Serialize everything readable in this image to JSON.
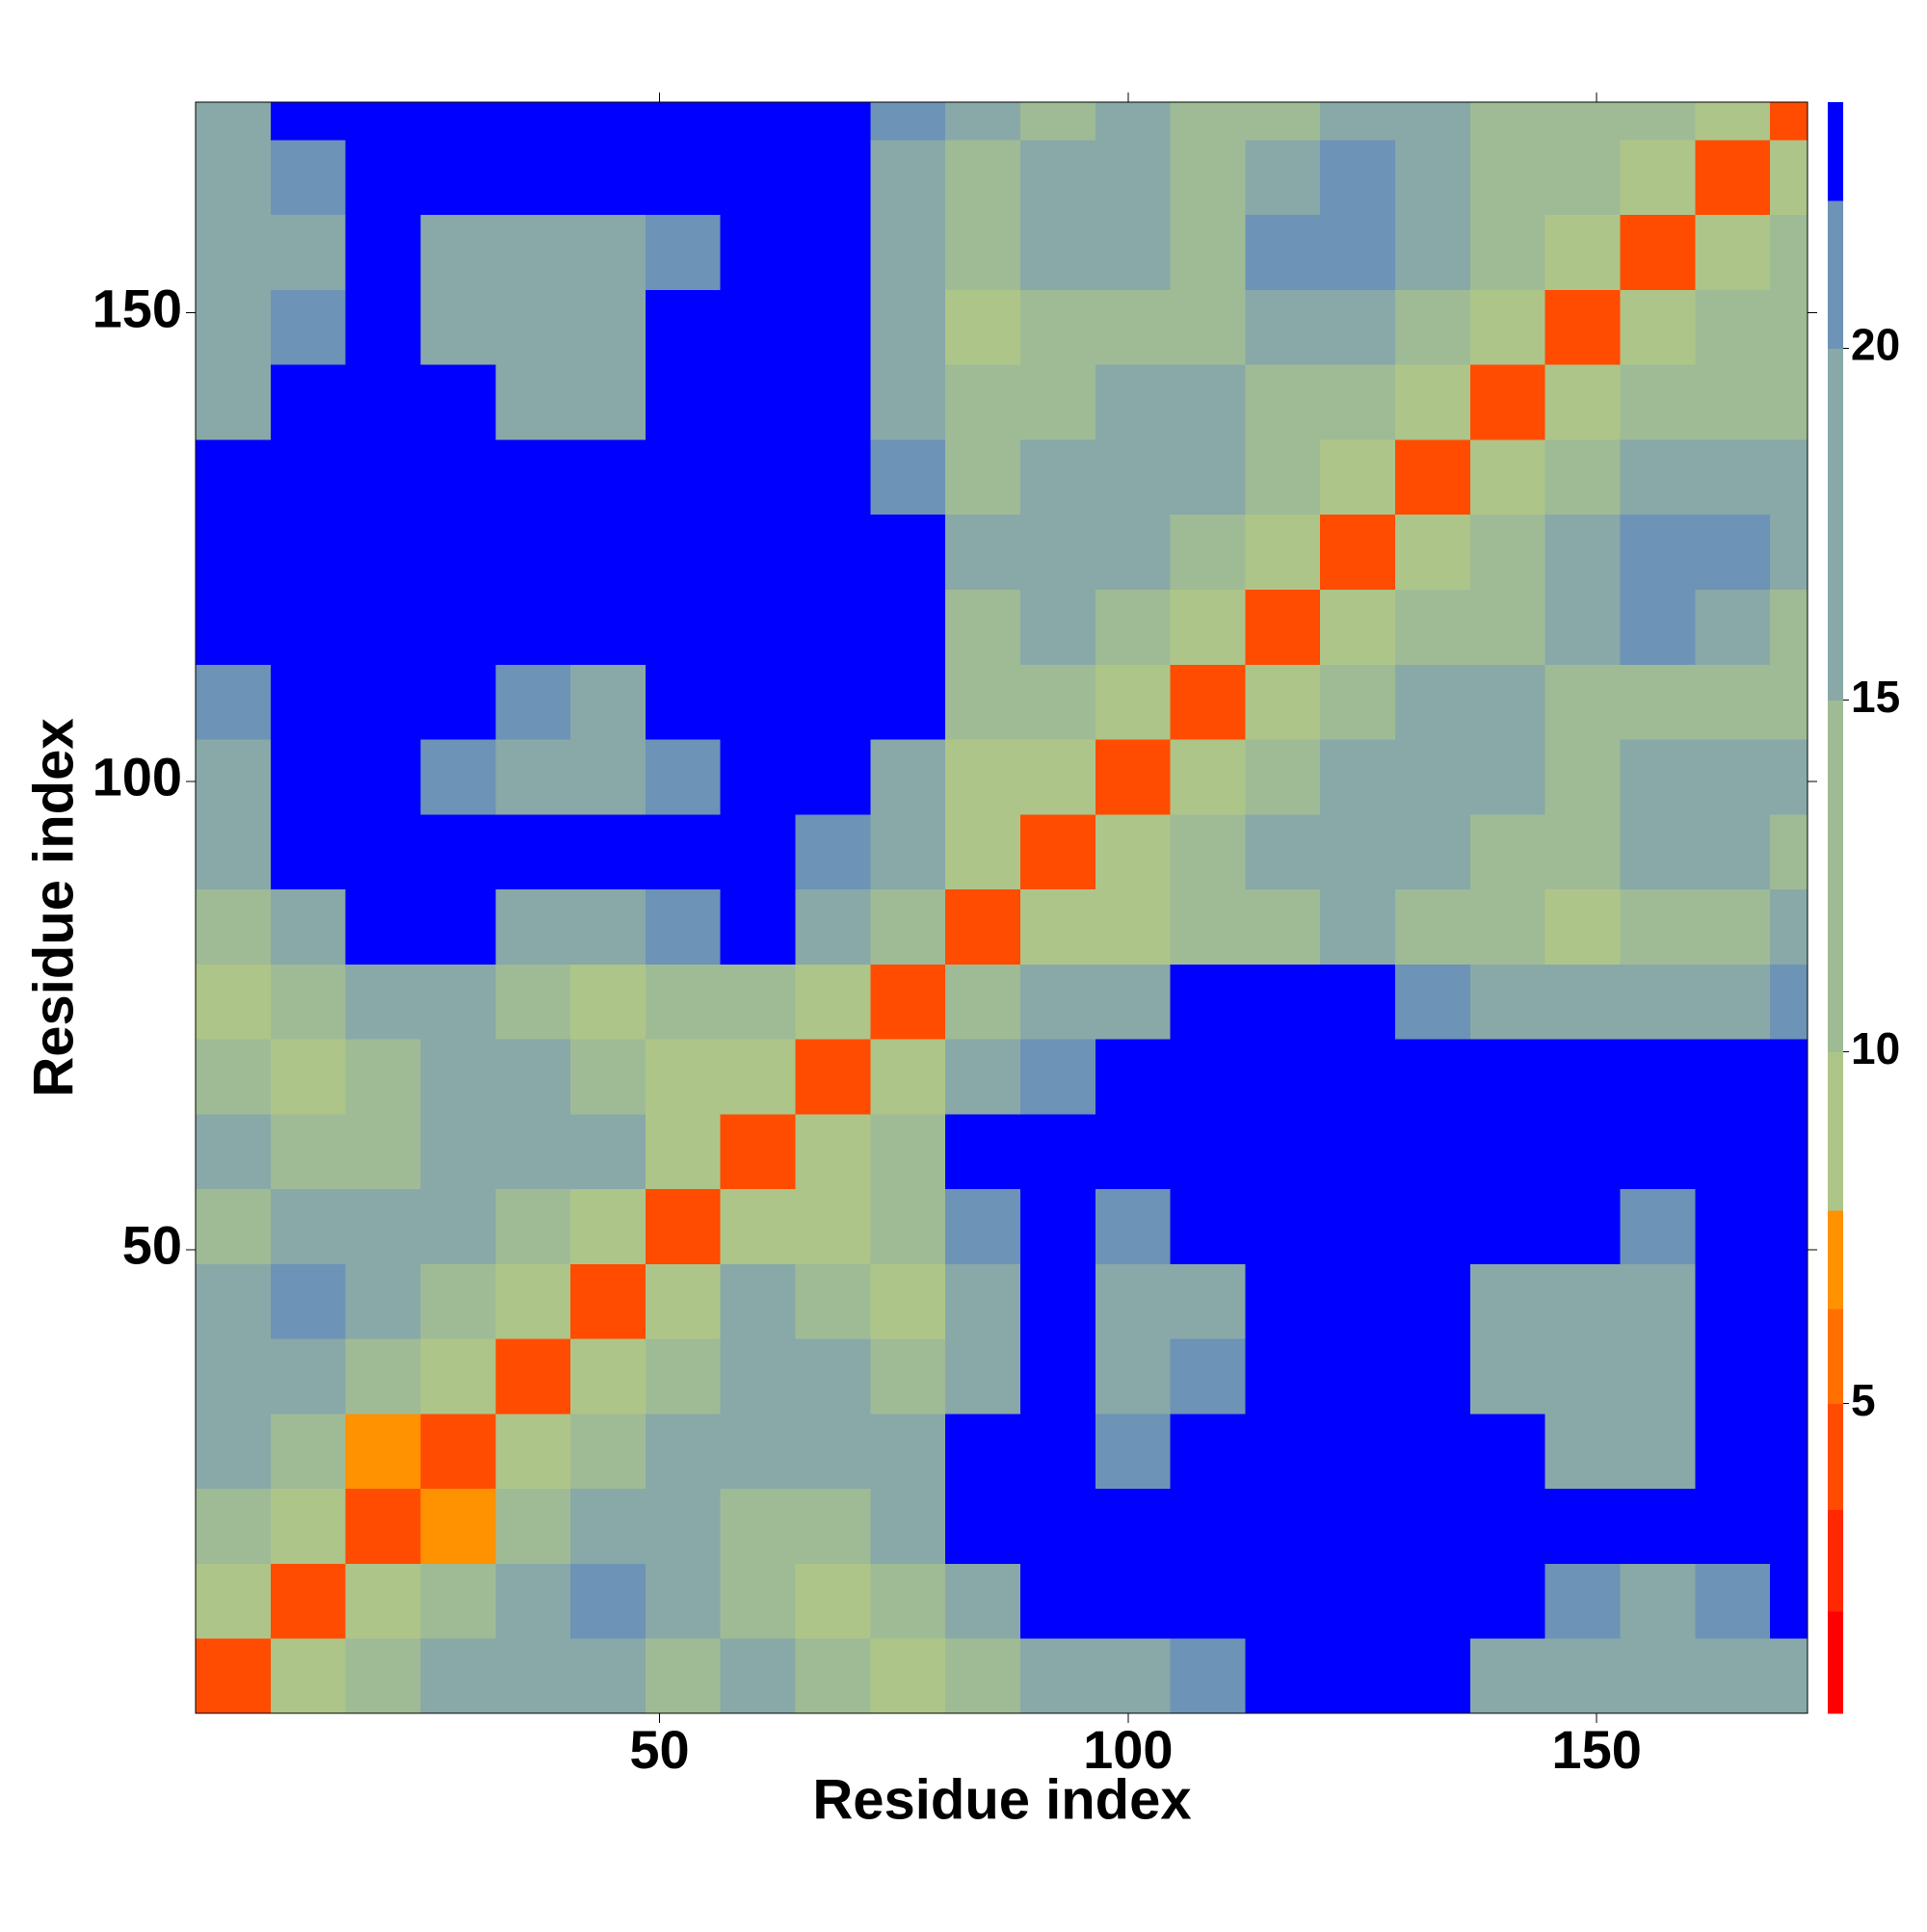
{
  "chart_data": {
    "type": "heatmap",
    "x_label": "Residue index",
    "y_label": "Residue index",
    "xlim": [
      0.5,
      172.5
    ],
    "ylim": [
      0.5,
      172.5
    ],
    "xticks": [
      50,
      100,
      150
    ],
    "yticks": [
      50,
      100,
      150
    ],
    "x_bins": [
      0.5,
      8.5,
      16.5,
      24.5,
      32.5,
      40.5,
      48.5,
      56.5,
      64.5,
      72.5,
      80.5,
      88.5,
      96.5,
      104.5,
      112.5,
      120.5,
      128.5,
      136.5,
      144.5,
      152.5,
      160.5,
      168.5,
      172.5
    ],
    "y_bins": [
      0.5,
      8.5,
      16.5,
      24.5,
      32.5,
      40.5,
      48.5,
      56.5,
      64.5,
      72.5,
      80.5,
      88.5,
      96.5,
      104.5,
      112.5,
      120.5,
      128.5,
      136.5,
      144.5,
      152.5,
      160.5,
      168.5,
      172.5
    ],
    "values": [
      [
        4,
        9,
        13,
        16,
        18,
        16,
        14,
        17,
        13,
        9,
        14,
        20,
        17,
        21,
        23,
        23,
        23,
        20,
        18,
        17,
        18,
        19
      ],
      [
        9,
        4,
        8,
        12,
        17,
        21,
        20,
        11,
        10,
        14,
        18,
        23,
        23,
        23,
        23,
        23,
        23,
        23,
        21,
        20,
        21,
        23
      ],
      [
        13,
        8,
        4,
        7,
        12,
        20,
        19,
        14,
        15,
        17,
        23,
        23,
        23,
        23,
        23,
        23,
        23,
        23,
        23,
        23,
        23,
        23
      ],
      [
        16,
        12,
        7,
        4,
        8,
        12,
        16,
        17,
        20,
        19,
        23,
        23,
        21,
        23,
        23,
        23,
        23,
        23,
        20,
        19,
        23,
        23
      ],
      [
        18,
        17,
        12,
        8,
        4,
        9,
        12,
        18,
        19,
        12,
        20,
        23,
        17,
        21,
        23,
        23,
        23,
        20,
        16,
        16,
        23,
        23
      ],
      [
        16,
        21,
        20,
        12,
        9,
        4,
        10,
        18,
        15,
        9,
        19,
        23,
        16,
        20,
        23,
        23,
        23,
        20,
        17,
        17,
        23,
        23
      ],
      [
        14,
        20,
        19,
        16,
        12,
        10,
        4,
        10,
        9,
        14,
        21,
        23,
        21,
        23,
        23,
        23,
        23,
        23,
        23,
        21,
        23,
        23
      ],
      [
        17,
        11,
        14,
        17,
        18,
        18,
        10,
        4,
        9,
        12,
        23,
        23,
        23,
        23,
        23,
        23,
        23,
        23,
        23,
        23,
        23,
        23
      ],
      [
        13,
        10,
        15,
        20,
        19,
        15,
        9,
        9,
        4,
        10,
        16,
        21,
        23,
        23,
        23,
        23,
        23,
        23,
        23,
        23,
        23,
        23
      ],
      [
        9,
        14,
        17,
        19,
        12,
        9,
        14,
        12,
        10,
        4,
        12,
        17,
        20,
        23,
        23,
        23,
        22,
        18,
        18,
        19,
        20,
        21
      ],
      [
        14,
        18,
        23,
        23,
        20,
        19,
        21,
        23,
        16,
        12,
        4,
        9,
        10,
        13,
        15,
        17,
        15,
        12,
        10,
        12,
        15,
        17
      ],
      [
        20,
        23,
        23,
        23,
        23,
        23,
        23,
        23,
        21,
        17,
        9,
        4,
        9,
        11,
        18,
        20,
        16,
        14,
        14,
        18,
        17,
        15
      ],
      [
        17,
        23,
        23,
        21,
        17,
        16,
        21,
        23,
        23,
        20,
        10,
        9,
        4,
        9,
        12,
        16,
        17,
        16,
        15,
        20,
        19,
        18
      ],
      [
        21,
        23,
        23,
        23,
        21,
        20,
        23,
        23,
        23,
        23,
        13,
        11,
        9,
        4,
        9,
        13,
        17,
        16,
        14,
        14,
        11,
        15
      ],
      [
        23,
        23,
        23,
        23,
        23,
        23,
        23,
        23,
        23,
        23,
        15,
        18,
        12,
        9,
        4,
        9,
        12,
        14,
        18,
        21,
        19,
        13
      ],
      [
        23,
        23,
        23,
        23,
        23,
        23,
        23,
        23,
        23,
        23,
        17,
        20,
        16,
        13,
        9,
        4,
        9,
        13,
        17,
        21,
        22,
        18
      ],
      [
        23,
        23,
        23,
        23,
        23,
        23,
        23,
        23,
        23,
        22,
        15,
        16,
        17,
        17,
        12,
        9,
        4,
        9,
        13,
        18,
        20,
        19
      ],
      [
        20,
        23,
        23,
        23,
        20,
        20,
        23,
        23,
        23,
        18,
        12,
        14,
        16,
        16,
        14,
        13,
        9,
        4,
        9,
        12,
        11,
        15
      ],
      [
        18,
        21,
        23,
        20,
        16,
        17,
        23,
        23,
        23,
        18,
        10,
        14,
        15,
        14,
        18,
        17,
        13,
        9,
        4,
        9,
        12,
        14
      ],
      [
        17,
        20,
        23,
        19,
        16,
        17,
        21,
        23,
        23,
        19,
        12,
        18,
        20,
        14,
        21,
        21,
        18,
        12,
        9,
        4,
        9,
        12
      ],
      [
        18,
        21,
        23,
        23,
        23,
        23,
        23,
        23,
        23,
        20,
        15,
        17,
        19,
        11,
        19,
        22,
        20,
        11,
        12,
        9,
        4,
        9
      ],
      [
        19,
        23,
        23,
        23,
        23,
        23,
        23,
        23,
        23,
        21,
        17,
        15,
        18,
        15,
        13,
        18,
        19,
        15,
        14,
        12,
        9,
        4
      ]
    ],
    "colorbar": {
      "lim": [
        0.6,
        23.5
      ],
      "ticks": [
        5,
        10,
        15,
        20
      ],
      "levels": [
        0.6,
        2.05,
        3.5,
        5,
        6.35,
        7.75,
        10,
        15,
        20,
        22.1,
        23.5
      ],
      "colors": [
        "#ff0000",
        "#ff2800",
        "#ff4c00",
        "#ff7000",
        "#ff9200",
        "#aec58a",
        "#9fbb95",
        "#88a9a8",
        "#6d93b6",
        "#0000ff"
      ]
    }
  }
}
